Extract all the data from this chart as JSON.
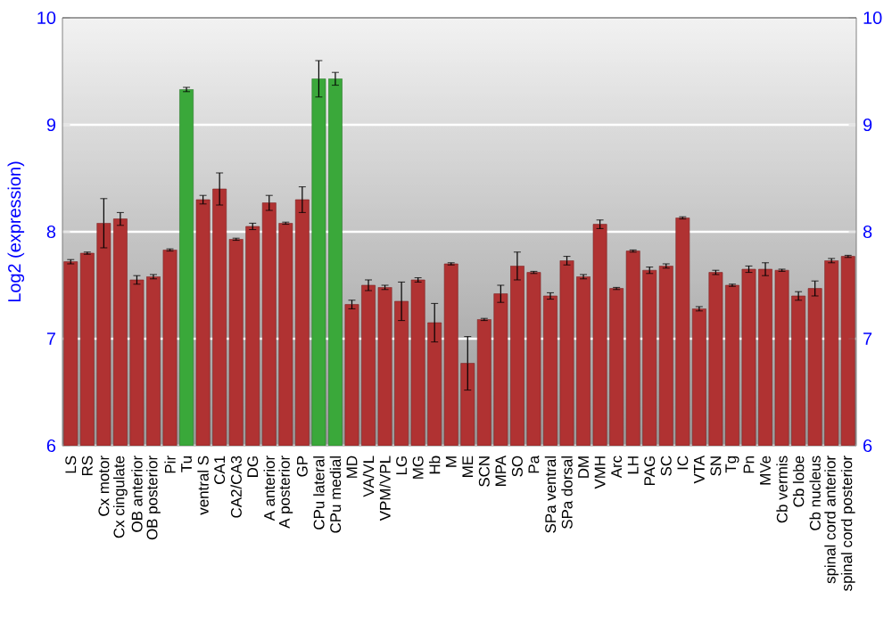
{
  "chart_data": {
    "type": "bar",
    "ylabel": "Log2 (expression)",
    "categories": [
      "LS",
      "RS",
      "Cx motor",
      "Cx cingulate",
      "OB anterior",
      "OB posterior",
      "Pir",
      "Tu",
      "ventral S",
      "CA1",
      "CA2/CA3",
      "DG",
      "A anterior",
      "A posterior",
      "GP",
      "CPu lateral",
      "CPu medial",
      "MD",
      "VA/VL",
      "VPM/VPL",
      "LG",
      "MG",
      "Hb",
      "M",
      "ME",
      "SCN",
      "MPA",
      "SO",
      "Pa",
      "SPa ventral",
      "SPa dorsal",
      "DM",
      "VMH",
      "Arc",
      "LH",
      "PAG",
      "SC",
      "IC",
      "VTA",
      "SN",
      "Tg",
      "Pn",
      "MVe",
      "Cb vermis",
      "Cb lobe",
      "Cb nucleus",
      "spinal cord anterior",
      "spinal cord posterior"
    ],
    "values": [
      7.72,
      7.8,
      8.08,
      8.12,
      7.55,
      7.58,
      7.83,
      9.33,
      8.3,
      8.4,
      7.93,
      8.05,
      8.27,
      8.08,
      8.3,
      9.43,
      9.43,
      7.32,
      7.5,
      7.48,
      7.35,
      7.55,
      7.15,
      7.7,
      6.77,
      7.18,
      7.42,
      7.68,
      7.62,
      7.4,
      7.73,
      7.58,
      8.07,
      7.47,
      7.82,
      7.64,
      7.68,
      8.13,
      7.28,
      7.62,
      7.5,
      7.65,
      7.65,
      7.64,
      7.4,
      7.47,
      7.73,
      7.77
    ],
    "errors": [
      0.02,
      0.01,
      0.23,
      0.06,
      0.04,
      0.02,
      0.01,
      0.02,
      0.04,
      0.15,
      0.01,
      0.03,
      0.07,
      0.01,
      0.12,
      0.17,
      0.06,
      0.04,
      0.05,
      0.02,
      0.18,
      0.02,
      0.18,
      0.01,
      0.25,
      0.01,
      0.08,
      0.13,
      0.01,
      0.03,
      0.04,
      0.02,
      0.04,
      0.01,
      0.01,
      0.03,
      0.02,
      0.01,
      0.02,
      0.02,
      0.01,
      0.03,
      0.06,
      0.01,
      0.04,
      0.07,
      0.02,
      0.01
    ],
    "colors": [
      "#b03232",
      "#b03232",
      "#b03232",
      "#b03232",
      "#b03232",
      "#b03232",
      "#b03232",
      "#3aa83a",
      "#b03232",
      "#b03232",
      "#b03232",
      "#b03232",
      "#b03232",
      "#b03232",
      "#b03232",
      "#3aa83a",
      "#3aa83a",
      "#b03232",
      "#b03232",
      "#b03232",
      "#b03232",
      "#b03232",
      "#b03232",
      "#b03232",
      "#b03232",
      "#b03232",
      "#b03232",
      "#b03232",
      "#b03232",
      "#b03232",
      "#b03232",
      "#b03232",
      "#b03232",
      "#b03232",
      "#b03232",
      "#b03232",
      "#b03232",
      "#b03232",
      "#b03232",
      "#b03232",
      "#b03232",
      "#b03232",
      "#b03232",
      "#b03232",
      "#b03232",
      "#b03232",
      "#b03232",
      "#b03232"
    ],
    "ylim": [
      6,
      10
    ],
    "yticks": [
      6,
      7,
      8,
      9,
      10
    ],
    "y2lim": [
      6,
      10
    ],
    "y2ticks": [
      6,
      7,
      8,
      9,
      10
    ],
    "grid": "y"
  }
}
